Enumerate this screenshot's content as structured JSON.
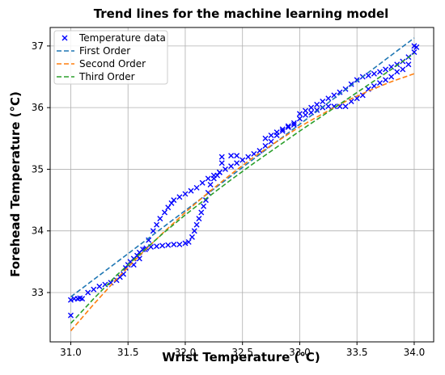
{
  "chart_data": {
    "type": "scatter",
    "title": "Trend lines for the machine learning model",
    "xlabel": "Wrist Temperature (°C)",
    "ylabel": "Forehead Temperature (°C)",
    "xlim": [
      30.82,
      34.17
    ],
    "ylim": [
      32.2,
      37.3
    ],
    "xticks": [
      31.0,
      31.5,
      32.0,
      32.5,
      33.0,
      33.5,
      34.0
    ],
    "xtick_labels": [
      "31.0",
      "31.5",
      "32.0",
      "32.5",
      "33.0",
      "33.5",
      "34.0"
    ],
    "yticks": [
      33,
      34,
      35,
      36,
      37
    ],
    "ytick_labels": [
      "33",
      "34",
      "35",
      "36",
      "37"
    ],
    "grid": true,
    "legend_position": "top-left",
    "legend": [
      "Temperature data",
      "First Order",
      "Second Order",
      "Third Order"
    ],
    "scatter": {
      "name": "Temperature data",
      "color": "#0000ff",
      "marker": "x",
      "points": [
        [
          31.0,
          32.63
        ],
        [
          31.0,
          32.88
        ],
        [
          31.03,
          32.9
        ],
        [
          31.06,
          32.9
        ],
        [
          31.08,
          32.91
        ],
        [
          31.1,
          32.9
        ],
        [
          31.15,
          33.0
        ],
        [
          31.2,
          33.05
        ],
        [
          31.25,
          33.1
        ],
        [
          31.3,
          33.13
        ],
        [
          31.35,
          33.16
        ],
        [
          31.4,
          33.2
        ],
        [
          31.43,
          33.25
        ],
        [
          31.46,
          33.3
        ],
        [
          31.48,
          33.4
        ],
        [
          31.5,
          33.45
        ],
        [
          31.52,
          33.5
        ],
        [
          31.55,
          33.55
        ],
        [
          31.58,
          33.6
        ],
        [
          31.6,
          33.65
        ],
        [
          31.63,
          33.7
        ],
        [
          31.66,
          33.72
        ],
        [
          31.7,
          33.74
        ],
        [
          31.75,
          33.75
        ],
        [
          31.8,
          33.76
        ],
        [
          31.85,
          33.77
        ],
        [
          31.9,
          33.78
        ],
        [
          31.95,
          33.78
        ],
        [
          32.0,
          33.8
        ],
        [
          32.03,
          33.82
        ],
        [
          32.06,
          33.9
        ],
        [
          32.08,
          34.0
        ],
        [
          32.1,
          34.1
        ],
        [
          32.12,
          34.2
        ],
        [
          32.14,
          34.3
        ],
        [
          32.16,
          34.4
        ],
        [
          32.18,
          34.5
        ],
        [
          32.2,
          34.62
        ],
        [
          32.22,
          34.75
        ],
        [
          32.25,
          34.85
        ],
        [
          32.28,
          34.9
        ],
        [
          32.3,
          34.95
        ],
        [
          31.55,
          33.45
        ],
        [
          31.6,
          33.55
        ],
        [
          31.65,
          33.7
        ],
        [
          31.68,
          33.85
        ],
        [
          31.72,
          34.0
        ],
        [
          31.75,
          34.1
        ],
        [
          31.78,
          34.2
        ],
        [
          31.82,
          34.3
        ],
        [
          31.85,
          34.38
        ],
        [
          31.88,
          34.45
        ],
        [
          31.9,
          34.5
        ],
        [
          31.95,
          34.55
        ],
        [
          32.0,
          34.6
        ],
        [
          32.05,
          34.65
        ],
        [
          32.1,
          34.7
        ],
        [
          32.15,
          34.78
        ],
        [
          32.2,
          34.85
        ],
        [
          32.25,
          34.9
        ],
        [
          32.3,
          34.95
        ],
        [
          32.35,
          35.0
        ],
        [
          32.4,
          35.05
        ],
        [
          32.45,
          35.1
        ],
        [
          32.5,
          35.15
        ],
        [
          32.55,
          35.2
        ],
        [
          32.32,
          35.1
        ],
        [
          32.32,
          35.2
        ],
        [
          32.4,
          35.22
        ],
        [
          32.45,
          35.22
        ],
        [
          32.6,
          35.25
        ],
        [
          32.65,
          35.3
        ],
        [
          32.7,
          35.38
        ],
        [
          32.75,
          35.45
        ],
        [
          32.8,
          35.55
        ],
        [
          32.85,
          35.62
        ],
        [
          32.9,
          35.68
        ],
        [
          32.95,
          35.75
        ],
        [
          33.0,
          35.82
        ],
        [
          33.05,
          35.88
        ],
        [
          33.1,
          35.92
        ],
        [
          33.15,
          35.96
        ],
        [
          33.2,
          36.0
        ],
        [
          33.25,
          36.02
        ],
        [
          33.3,
          36.02
        ],
        [
          33.35,
          36.02
        ],
        [
          33.4,
          36.02
        ],
        [
          33.0,
          35.9
        ],
        [
          33.05,
          35.95
        ],
        [
          33.1,
          36.0
        ],
        [
          33.15,
          36.05
        ],
        [
          33.2,
          36.1
        ],
        [
          33.25,
          36.15
        ],
        [
          33.3,
          36.2
        ],
        [
          33.35,
          36.25
        ],
        [
          33.4,
          36.3
        ],
        [
          33.45,
          36.38
        ],
        [
          33.5,
          36.45
        ],
        [
          33.55,
          36.5
        ],
        [
          33.6,
          36.52
        ],
        [
          33.65,
          36.55
        ],
        [
          33.7,
          36.58
        ],
        [
          33.75,
          36.62
        ],
        [
          33.8,
          36.66
        ],
        [
          33.85,
          36.7
        ],
        [
          33.9,
          36.75
        ],
        [
          33.95,
          36.82
        ],
        [
          34.0,
          36.9
        ],
        [
          34.0,
          37.0
        ],
        [
          34.02,
          36.98
        ],
        [
          33.45,
          36.1
        ],
        [
          33.5,
          36.15
        ],
        [
          33.55,
          36.2
        ],
        [
          33.6,
          36.3
        ],
        [
          33.65,
          36.35
        ],
        [
          33.7,
          36.4
        ],
        [
          33.75,
          36.45
        ],
        [
          33.8,
          36.5
        ],
        [
          33.85,
          36.58
        ],
        [
          33.9,
          36.62
        ],
        [
          33.95,
          36.7
        ],
        [
          32.7,
          35.5
        ],
        [
          32.75,
          35.55
        ],
        [
          32.8,
          35.6
        ],
        [
          32.85,
          35.65
        ],
        [
          32.9,
          35.7
        ],
        [
          32.95,
          35.72
        ]
      ]
    },
    "series": [
      {
        "name": "First Order",
        "color": "#1f77b4",
        "x": [
          31.0,
          34.0
        ],
        "y": [
          32.93,
          37.13
        ]
      },
      {
        "name": "Second Order",
        "color": "#ff7f0e",
        "x": [
          31.0,
          31.2,
          31.4,
          31.6,
          31.8,
          32.0,
          32.2,
          32.4,
          32.6,
          32.8,
          33.0,
          33.2,
          33.4,
          33.6,
          33.8,
          34.0
        ],
        "y": [
          32.38,
          32.81,
          33.22,
          33.6,
          33.96,
          34.3,
          34.62,
          34.92,
          35.2,
          35.45,
          35.69,
          35.9,
          36.1,
          36.27,
          36.42,
          36.55
        ]
      },
      {
        "name": "Third Order",
        "color": "#2ca02c",
        "x": [
          31.0,
          31.2,
          31.4,
          31.6,
          31.8,
          32.0,
          32.2,
          32.4,
          32.6,
          32.8,
          33.0,
          33.2,
          33.4,
          33.6,
          33.8,
          34.0
        ],
        "y": [
          32.5,
          32.9,
          33.28,
          33.62,
          33.95,
          34.26,
          34.55,
          34.83,
          35.1,
          35.36,
          35.62,
          35.87,
          36.12,
          36.37,
          36.62,
          36.88
        ]
      }
    ]
  }
}
